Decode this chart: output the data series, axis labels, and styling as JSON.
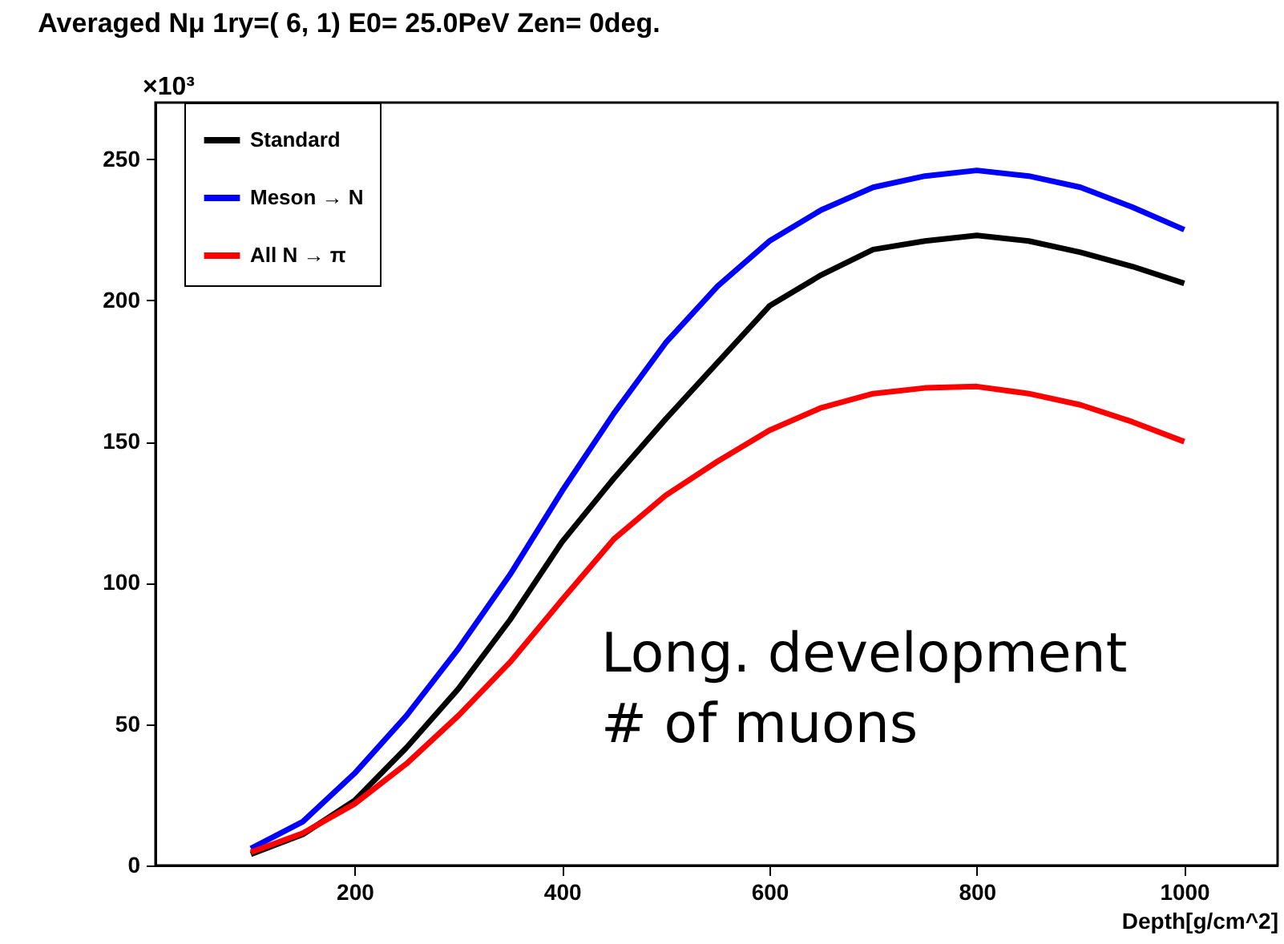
{
  "chart_data": {
    "type": "line",
    "title": "Averaged Nμ 1ry=( 6, 1) E0= 25.0PeV Zen=  0deg.",
    "xlabel": "Depth[g/cm^2]",
    "x": [
      100,
      150,
      200,
      250,
      300,
      350,
      400,
      450,
      500,
      550,
      600,
      650,
      700,
      750,
      800,
      850,
      900,
      950,
      1000
    ],
    "series": [
      {
        "name": "Standard",
        "color": "#000000",
        "values": [
          4,
          11,
          23,
          41.7,
          62.5,
          87,
          114.5,
          137,
          158,
          178,
          198,
          209,
          218,
          221,
          223,
          221,
          217,
          212,
          206
        ]
      },
      {
        "name": "Meson → N",
        "color": "#0000ff",
        "values": [
          6,
          15.5,
          32.6,
          53,
          76.7,
          103,
          132.5,
          160,
          185,
          205,
          221,
          232,
          240,
          244,
          246,
          244,
          240,
          233,
          225
        ]
      },
      {
        "name": "All N → π",
        "color": "#ff0000",
        "values": [
          4.7,
          11.4,
          21.8,
          36,
          53,
          72,
          94,
          115.5,
          131,
          143,
          154,
          162,
          167,
          169,
          169.5,
          167,
          163,
          157,
          150
        ]
      }
    ],
    "xlim": [
      8,
      1090
    ],
    "ylim": [
      0,
      270
    ],
    "xticks": [
      200,
      400,
      600,
      800,
      1000
    ],
    "yticks": [
      0,
      50,
      100,
      150,
      200,
      250
    ],
    "annotations": [
      "×10³",
      "Long. development\n# of muons"
    ],
    "legend": "top left",
    "grid": false,
    "marker": "none",
    "line_style": "solid"
  }
}
